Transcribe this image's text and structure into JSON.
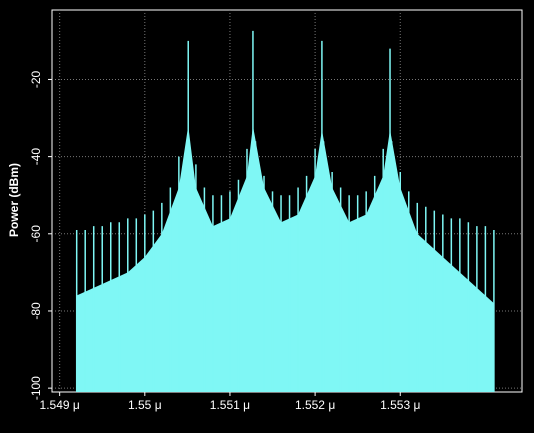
{
  "chart_data": {
    "type": "spectrum",
    "ylabel": "Power (dBm)",
    "xlim": [
      1.54891,
      1.55443
    ],
    "ylim": [
      -101,
      -2
    ],
    "xticks": [
      {
        "value": 1.549,
        "label": "1.549 μ"
      },
      {
        "value": 1.55,
        "label": "1.55 μ"
      },
      {
        "value": 1.551,
        "label": "1.551 μ"
      },
      {
        "value": 1.552,
        "label": "1.552 μ"
      },
      {
        "value": 1.553,
        "label": "1.553 μ"
      }
    ],
    "yticks": [
      -20,
      -40,
      -60,
      -80,
      -100
    ],
    "grid": true,
    "series": [
      {
        "style": "area",
        "color": "#7ff7f5",
        "x": [
          1.5492,
          1.5495,
          1.5498,
          1.55,
          1.5502,
          1.5504,
          1.55051,
          1.5506,
          1.5508,
          1.551,
          1.5512,
          1.55127,
          1.5514,
          1.5516,
          1.5518,
          1.552,
          1.55208,
          1.5522,
          1.5524,
          1.5526,
          1.5528,
          1.55288,
          1.553,
          1.5532,
          1.5535,
          1.5538,
          1.5541
        ],
        "values": [
          -76,
          -73,
          -70,
          -66,
          -60,
          -48,
          -32,
          -48,
          -58,
          -56,
          -45,
          -32,
          -48,
          -57,
          -55,
          -45,
          -33,
          -48,
          -57,
          -55,
          -45,
          -33,
          -48,
          -60,
          -66,
          -72,
          -78
        ]
      },
      {
        "style": "stems",
        "color": "#7ff7f5",
        "x": [
          1.5492,
          1.5493,
          1.5494,
          1.5495,
          1.5496,
          1.5497,
          1.5498,
          1.5499,
          1.55,
          1.5501,
          1.5502,
          1.5503,
          1.5504,
          1.5505,
          1.5506,
          1.5507,
          1.5508,
          1.5509,
          1.551,
          1.5511,
          1.5512,
          1.5513,
          1.5514,
          1.5515,
          1.5516,
          1.5517,
          1.5518,
          1.5519,
          1.552,
          1.5521,
          1.5522,
          1.5523,
          1.5524,
          1.5525,
          1.5526,
          1.5527,
          1.5528,
          1.5529,
          1.553,
          1.5531,
          1.5532,
          1.5533,
          1.5534,
          1.5535,
          1.5536,
          1.5537,
          1.5538,
          1.5539,
          1.554,
          1.5541
        ],
        "values": [
          -59,
          -59,
          -58,
          -58,
          -57,
          -57,
          -56,
          -56,
          -55,
          -54,
          -52,
          -48,
          -40,
          -35,
          -42,
          -48,
          -50,
          -50,
          -49,
          -46,
          -38,
          -36,
          -45,
          -49,
          -50,
          -50,
          -48,
          -45,
          -38,
          -36,
          -44,
          -48,
          -50,
          -50,
          -49,
          -45,
          -38,
          -36,
          -44,
          -49,
          -52,
          -53,
          -54,
          -55,
          -56,
          -56,
          -57,
          -58,
          -58,
          -59
        ]
      },
      {
        "style": "stems",
        "color": "#7ff7f5",
        "x": [
          1.55051,
          1.55127,
          1.55208,
          1.55288
        ],
        "values": [
          -10,
          -7.4,
          -10,
          -12
        ]
      }
    ]
  }
}
